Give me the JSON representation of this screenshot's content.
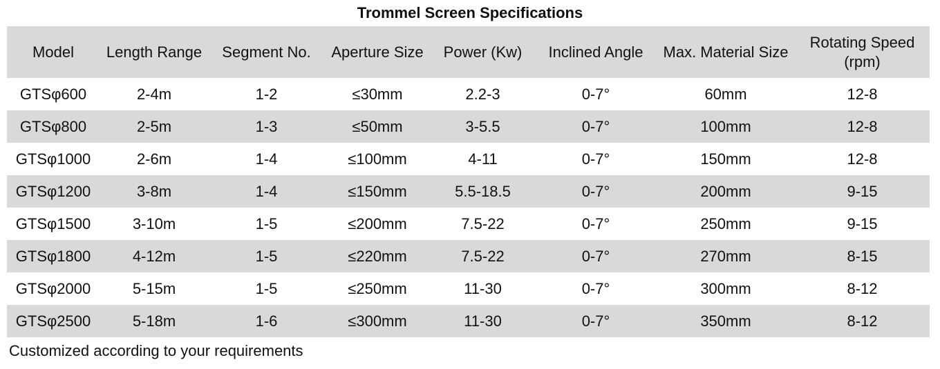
{
  "page": {
    "title": "Trommel Screen Specifications",
    "footer_note": "Customized according to your requirements"
  },
  "colors": {
    "band_gray": "#d9d9d9",
    "background": "#ffffff",
    "text": "#111111"
  },
  "table": {
    "columns": [
      "Model",
      "Length Range",
      "Segment No.",
      "Aperture Size",
      "Power (Kw)",
      "Inclined Angle",
      "Max. Material Size",
      "Rotating Speed\n(rpm)"
    ],
    "rows": [
      [
        "GTSφ600",
        "2-4m",
        "1-2",
        "≤30mm",
        "2.2-3",
        "0-7°",
        "60mm",
        "12-8"
      ],
      [
        "GTSφ800",
        "2-5m",
        "1-3",
        "≤50mm",
        "3-5.5",
        "0-7°",
        "100mm",
        "12-8"
      ],
      [
        "GTSφ1000",
        "2-6m",
        "1-4",
        "≤100mm",
        "4-11",
        "0-7°",
        "150mm",
        "12-8"
      ],
      [
        "GTSφ1200",
        "3-8m",
        "1-4",
        "≤150mm",
        "5.5-18.5",
        "0-7°",
        "200mm",
        "9-15"
      ],
      [
        "GTSφ1500",
        "3-10m",
        "1-5",
        "≤200mm",
        "7.5-22",
        "0-7°",
        "250mm",
        "9-15"
      ],
      [
        "GTSφ1800",
        "4-12m",
        "1-5",
        "≤220mm",
        "7.5-22",
        "0-7°",
        "270mm",
        "8-15"
      ],
      [
        "GTSφ2000",
        "5-15m",
        "1-5",
        "≤250mm",
        "11-30",
        "0-7°",
        "300mm",
        "8-12"
      ],
      [
        "GTSφ2500",
        "5-18m",
        "1-6",
        "≤300mm",
        "11-30",
        "0-7°",
        "350mm",
        "8-12"
      ]
    ]
  }
}
